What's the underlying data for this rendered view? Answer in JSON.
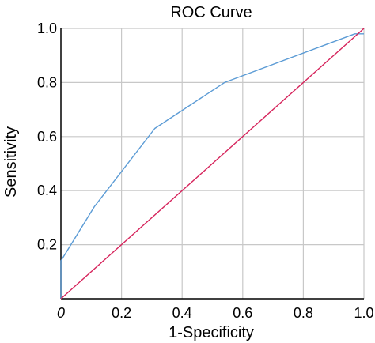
{
  "chart_data": {
    "type": "line",
    "title": "ROC Curve",
    "xlabel": "1-Specificity",
    "ylabel": "Sensitivity",
    "xlim": [
      0,
      1
    ],
    "ylim": [
      0,
      1
    ],
    "grid": true,
    "x_ticks": [
      {
        "value": 0,
        "label": "0"
      },
      {
        "value": 0.2,
        "label": "0.2"
      },
      {
        "value": 0.4,
        "label": "0.4"
      },
      {
        "value": 0.6,
        "label": "0.6"
      },
      {
        "value": 0.8,
        "label": "0.8"
      },
      {
        "value": 1.0,
        "label": "1.0"
      }
    ],
    "y_ticks": [
      {
        "value": 0.2,
        "label": "0.2"
      },
      {
        "value": 0.4,
        "label": "0.4"
      },
      {
        "value": 0.6,
        "label": "0.6"
      },
      {
        "value": 0.8,
        "label": "0.8"
      },
      {
        "value": 1.0,
        "label": "1.0"
      }
    ],
    "series": [
      {
        "color": "#5b9bd5",
        "x": [
          0,
          0,
          0.11,
          0.31,
          0.54,
          0.97,
          1.0
        ],
        "y": [
          0,
          0.14,
          0.34,
          0.63,
          0.8,
          0.98,
          0.98
        ]
      },
      {
        "color": "#d6245c",
        "x": [
          0,
          1
        ],
        "y": [
          0,
          1
        ]
      }
    ],
    "colors": {
      "grid": "#c8c8c8",
      "axis": "#000000"
    }
  }
}
